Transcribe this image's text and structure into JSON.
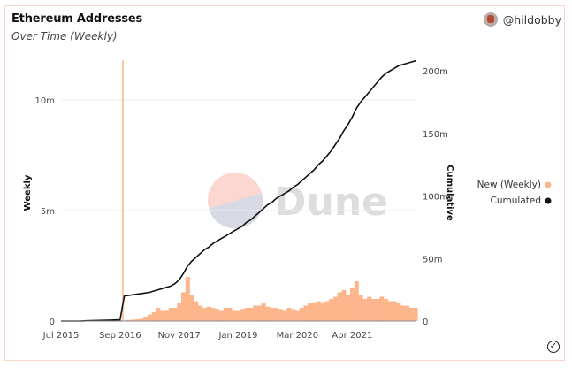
{
  "header": {
    "title": "Ethereum Addresses",
    "subtitle": "Over Time (Weekly)",
    "author": "@hildobby"
  },
  "watermark": "Dune",
  "footer": {
    "status_icon": "check-circle-icon"
  },
  "colors": {
    "weekly": "#fdb58c",
    "cumulative": "#111111",
    "grid": "#eeeeee"
  },
  "chart_data": {
    "type": "bar+line",
    "x_ticks": [
      "Jul 2015",
      "Sep 2016",
      "Nov 2017",
      "Jan 2019",
      "Mar 2020",
      "Apr 2021"
    ],
    "x_start": "2015-07",
    "y_left": {
      "label": "Weekly",
      "ticks": [
        "0",
        "5m",
        "10m"
      ],
      "range": [
        0,
        12
      ]
    },
    "y_right": {
      "label": "Cumulative",
      "ticks": [
        "0",
        "50m",
        "100m",
        "150m",
        "200m"
      ],
      "range": [
        0,
        212
      ]
    },
    "legend": {
      "placement": "right",
      "entries": [
        "New (Weekly)",
        "Cumulated"
      ]
    },
    "grid": true,
    "units": "millions",
    "series": [
      {
        "name": "New (Weekly)",
        "type": "bar",
        "values": [
          0.01,
          0.01,
          0.01,
          0.01,
          0.02,
          0.02,
          0.02,
          0.02,
          0.03,
          0.03,
          0.03,
          0.03,
          0.03,
          0.03,
          0.04,
          11.8,
          0.05,
          0.06,
          0.08,
          0.1,
          0.2,
          0.3,
          0.4,
          0.6,
          0.5,
          0.5,
          0.6,
          0.6,
          0.8,
          1.3,
          2.0,
          1.2,
          0.9,
          0.7,
          0.6,
          0.65,
          0.6,
          0.55,
          0.5,
          0.6,
          0.6,
          0.5,
          0.5,
          0.55,
          0.6,
          0.6,
          0.7,
          0.7,
          0.8,
          0.65,
          0.6,
          0.6,
          0.55,
          0.5,
          0.6,
          0.55,
          0.5,
          0.6,
          0.7,
          0.8,
          0.85,
          0.9,
          0.85,
          0.9,
          1.0,
          1.1,
          1.3,
          1.4,
          1.2,
          1.5,
          1.8,
          1.2,
          1.0,
          1.1,
          1.0,
          1.0,
          1.1,
          1.0,
          0.9,
          0.9,
          0.8,
          0.7,
          0.7,
          0.6,
          0.6
        ]
      },
      {
        "name": "Cumulated",
        "type": "line",
        "values": [
          0,
          0,
          0,
          0,
          0,
          0.1,
          0.2,
          0.3,
          0.4,
          0.5,
          0.6,
          0.7,
          0.8,
          0.9,
          1.0,
          20,
          20.5,
          21,
          21.5,
          22,
          22.5,
          23,
          24,
          25,
          26,
          27,
          28,
          30,
          33,
          38,
          44,
          48,
          51,
          54,
          57,
          59,
          62,
          64,
          66,
          68,
          70,
          72,
          74,
          76,
          79,
          81,
          84,
          87,
          90,
          93,
          95,
          98,
          100,
          102,
          104,
          107,
          109,
          112,
          115,
          118,
          121,
          125,
          128,
          132,
          136,
          141,
          146,
          152,
          157,
          163,
          170,
          175,
          179,
          183,
          187,
          191,
          195,
          198,
          200,
          202,
          204,
          205,
          206,
          207,
          208
        ]
      }
    ]
  }
}
